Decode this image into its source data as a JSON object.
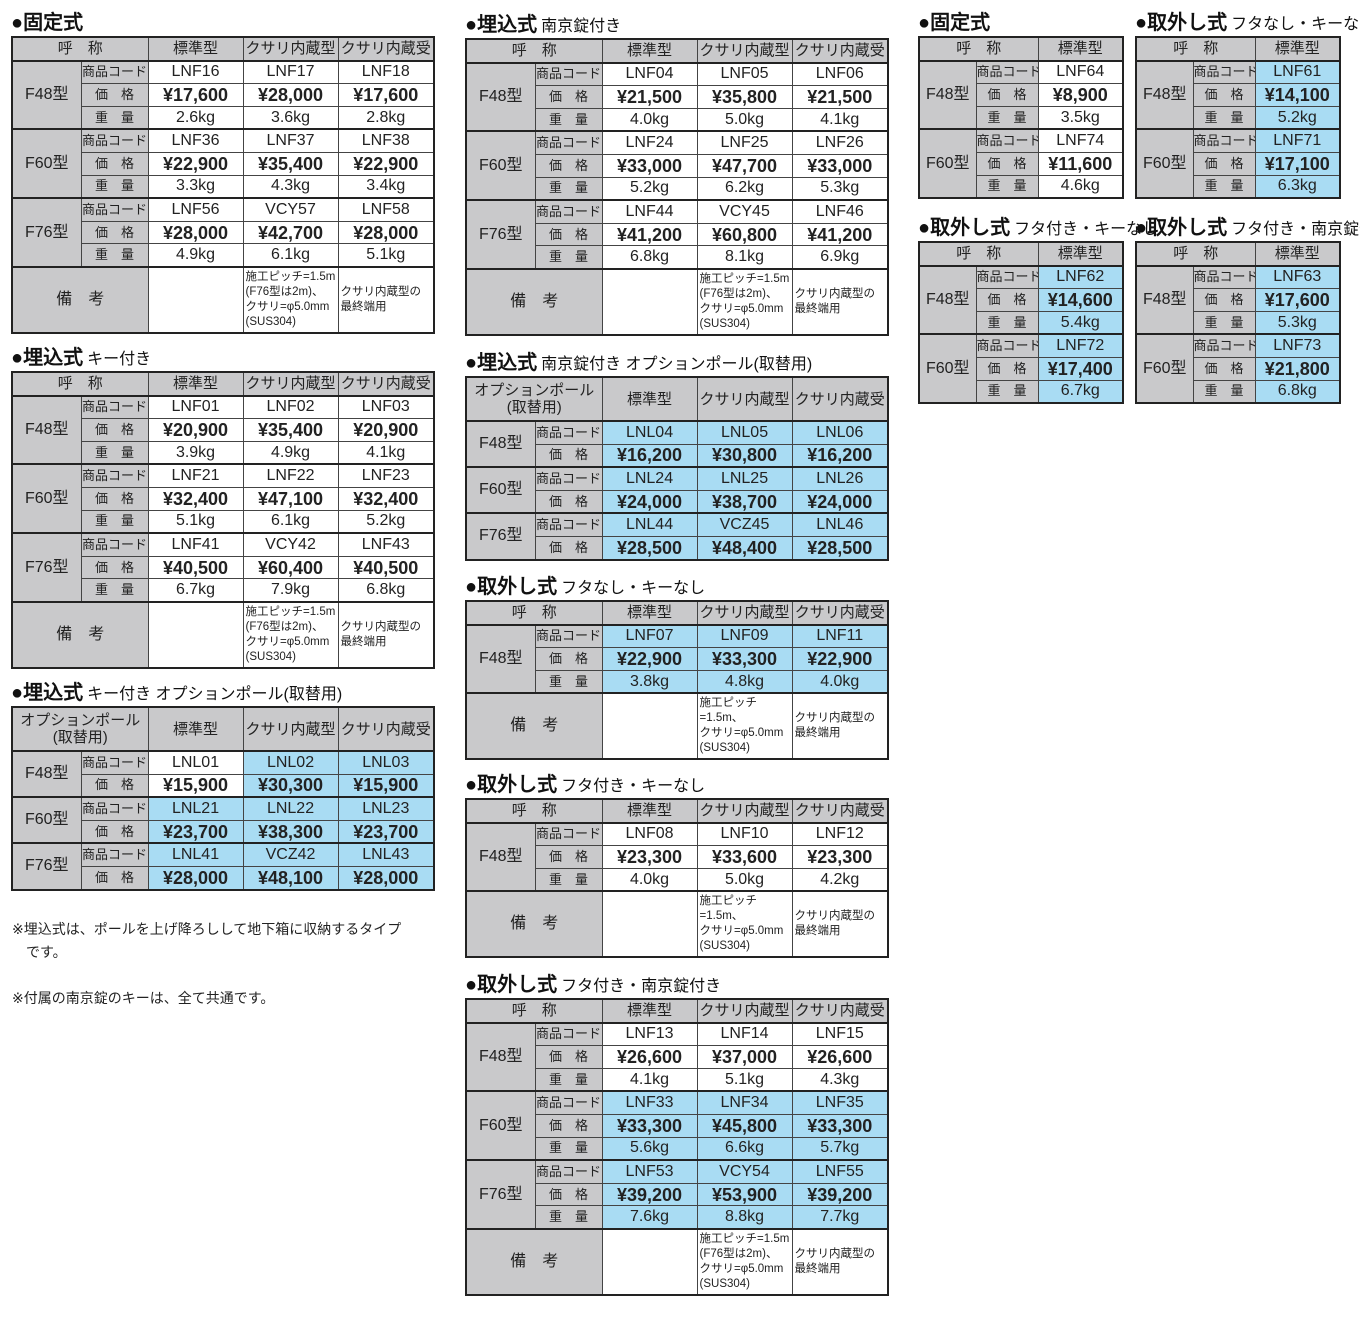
{
  "colors": {
    "header_gray": "#c9c9cb",
    "highlight_blue": "#a9dcf3",
    "border": "#222222"
  },
  "row_labels": [
    "商品コード",
    "価　格",
    "重　量"
  ],
  "remarks_label": "備　考",
  "tables": [
    {
      "title": "●固定式",
      "subtitle": "",
      "corner": "呼　称",
      "columns": [
        "標準型",
        "クサリ内蔵型",
        "クサリ内蔵受"
      ],
      "groups": [
        {
          "name": "F48型",
          "rows": [
            [
              "LNF16",
              "LNF17",
              "LNF18"
            ],
            [
              "¥17,600",
              "¥28,000",
              "¥17,600"
            ],
            [
              "2.6kg",
              "3.6kg",
              "2.8kg"
            ]
          ],
          "highlight": [
            false,
            false,
            false
          ]
        },
        {
          "name": "F60型",
          "rows": [
            [
              "LNF36",
              "LNF37",
              "LNF38"
            ],
            [
              "¥22,900",
              "¥35,400",
              "¥22,900"
            ],
            [
              "3.3kg",
              "4.3kg",
              "3.4kg"
            ]
          ],
          "highlight": [
            false,
            false,
            false
          ]
        },
        {
          "name": "F76型",
          "rows": [
            [
              "LNF56",
              "VCY57",
              "LNF58"
            ],
            [
              "¥28,000",
              "¥42,700",
              "¥28,000"
            ],
            [
              "4.9kg",
              "6.1kg",
              "5.1kg"
            ]
          ],
          "highlight": [
            false,
            false,
            false
          ]
        }
      ],
      "remarks": [
        "",
        "施工ピッチ=1.5m\n(F76型は2m)、\nクサリ=φ5.0mm\n(SUS304)",
        "クサリ内蔵型の\n最終端用"
      ]
    },
    {
      "title": "●埋込式",
      "subtitle": "キー付き",
      "corner": "呼　称",
      "columns": [
        "標準型",
        "クサリ内蔵型",
        "クサリ内蔵受"
      ],
      "groups": [
        {
          "name": "F48型",
          "rows": [
            [
              "LNF01",
              "LNF02",
              "LNF03"
            ],
            [
              "¥20,900",
              "¥35,400",
              "¥20,900"
            ],
            [
              "3.9kg",
              "4.9kg",
              "4.1kg"
            ]
          ],
          "highlight": [
            false,
            false,
            false
          ]
        },
        {
          "name": "F60型",
          "rows": [
            [
              "LNF21",
              "LNF22",
              "LNF23"
            ],
            [
              "¥32,400",
              "¥47,100",
              "¥32,400"
            ],
            [
              "5.1kg",
              "6.1kg",
              "5.2kg"
            ]
          ],
          "highlight": [
            false,
            false,
            false
          ]
        },
        {
          "name": "F76型",
          "rows": [
            [
              "LNF41",
              "VCY42",
              "LNF43"
            ],
            [
              "¥40,500",
              "¥60,400",
              "¥40,500"
            ],
            [
              "6.7kg",
              "7.9kg",
              "6.8kg"
            ]
          ],
          "highlight": [
            false,
            false,
            false
          ]
        }
      ],
      "remarks": [
        "",
        "施工ピッチ=1.5m\n(F76型は2m)、\nクサリ=φ5.0mm\n(SUS304)",
        "クサリ内蔵型の\n最終端用"
      ]
    },
    {
      "title": "●埋込式",
      "subtitle": "キー付き オプションポール(取替用)",
      "corner": "オプションポール\n(取替用)",
      "columns": [
        "標準型",
        "クサリ内蔵型",
        "クサリ内蔵受"
      ],
      "groups": [
        {
          "name": "F48型",
          "rows": [
            [
              "LNL01",
              "LNL02",
              "LNL03"
            ],
            [
              "¥15,900",
              "¥30,300",
              "¥15,900"
            ]
          ],
          "highlight": [
            false,
            true,
            true
          ]
        },
        {
          "name": "F60型",
          "rows": [
            [
              "LNL21",
              "LNL22",
              "LNL23"
            ],
            [
              "¥23,700",
              "¥38,300",
              "¥23,700"
            ]
          ],
          "highlight": [
            true,
            true,
            true
          ]
        },
        {
          "name": "F76型",
          "rows": [
            [
              "LNL41",
              "VCZ42",
              "LNL43"
            ],
            [
              "¥28,000",
              "¥48,100",
              "¥28,000"
            ]
          ],
          "highlight": [
            true,
            true,
            true
          ]
        }
      ],
      "remarks": null
    },
    {
      "title": "●埋込式",
      "subtitle": "南京錠付き",
      "corner": "呼　称",
      "columns": [
        "標準型",
        "クサリ内蔵型",
        "クサリ内蔵受"
      ],
      "groups": [
        {
          "name": "F48型",
          "rows": [
            [
              "LNF04",
              "LNF05",
              "LNF06"
            ],
            [
              "¥21,500",
              "¥35,800",
              "¥21,500"
            ],
            [
              "4.0kg",
              "5.0kg",
              "4.1kg"
            ]
          ],
          "highlight": [
            false,
            false,
            false
          ]
        },
        {
          "name": "F60型",
          "rows": [
            [
              "LNF24",
              "LNF25",
              "LNF26"
            ],
            [
              "¥33,000",
              "¥47,700",
              "¥33,000"
            ],
            [
              "5.2kg",
              "6.2kg",
              "5.3kg"
            ]
          ],
          "highlight": [
            false,
            false,
            false
          ]
        },
        {
          "name": "F76型",
          "rows": [
            [
              "LNF44",
              "VCY45",
              "LNF46"
            ],
            [
              "¥41,200",
              "¥60,800",
              "¥41,200"
            ],
            [
              "6.8kg",
              "8.1kg",
              "6.9kg"
            ]
          ],
          "highlight": [
            false,
            false,
            false
          ]
        }
      ],
      "remarks": [
        "",
        "施工ピッチ=1.5m\n(F76型は2m)、\nクサリ=φ5.0mm\n(SUS304)",
        "クサリ内蔵型の\n最終端用"
      ]
    },
    {
      "title": "●埋込式",
      "subtitle": "南京錠付き オプションポール(取替用)",
      "corner": "オプションポール\n(取替用)",
      "columns": [
        "標準型",
        "クサリ内蔵型",
        "クサリ内蔵受"
      ],
      "groups": [
        {
          "name": "F48型",
          "rows": [
            [
              "LNL04",
              "LNL05",
              "LNL06"
            ],
            [
              "¥16,200",
              "¥30,800",
              "¥16,200"
            ]
          ],
          "highlight": [
            true,
            true,
            true
          ]
        },
        {
          "name": "F60型",
          "rows": [
            [
              "LNL24",
              "LNL25",
              "LNL26"
            ],
            [
              "¥24,000",
              "¥38,700",
              "¥24,000"
            ]
          ],
          "highlight": [
            true,
            true,
            true
          ]
        },
        {
          "name": "F76型",
          "rows": [
            [
              "LNL44",
              "VCZ45",
              "LNL46"
            ],
            [
              "¥28,500",
              "¥48,400",
              "¥28,500"
            ]
          ],
          "highlight": [
            true,
            true,
            true
          ]
        }
      ],
      "remarks": null
    },
    {
      "title": "●取外し式",
      "subtitle": "フタなし・キーなし",
      "corner": "呼　称",
      "columns": [
        "標準型",
        "クサリ内蔵型",
        "クサリ内蔵受"
      ],
      "groups": [
        {
          "name": "F48型",
          "rows": [
            [
              "LNF07",
              "LNF09",
              "LNF11"
            ],
            [
              "¥22,900",
              "¥33,300",
              "¥22,900"
            ],
            [
              "3.8kg",
              "4.8kg",
              "4.0kg"
            ]
          ],
          "highlight": [
            true,
            true,
            true
          ]
        }
      ],
      "remarks": [
        "",
        "施工ピッチ\n=1.5m、\nクサリ=φ5.0mm\n(SUS304)",
        "クサリ内蔵型の\n最終端用"
      ]
    },
    {
      "title": "●取外し式",
      "subtitle": "フタ付き・キーなし",
      "corner": "呼　称",
      "columns": [
        "標準型",
        "クサリ内蔵型",
        "クサリ内蔵受"
      ],
      "groups": [
        {
          "name": "F48型",
          "rows": [
            [
              "LNF08",
              "LNF10",
              "LNF12"
            ],
            [
              "¥23,300",
              "¥33,600",
              "¥23,300"
            ],
            [
              "4.0kg",
              "5.0kg",
              "4.2kg"
            ]
          ],
          "highlight": [
            false,
            false,
            false
          ]
        }
      ],
      "remarks": [
        "",
        "施工ピッチ\n=1.5m、\nクサリ=φ5.0mm\n(SUS304)",
        "クサリ内蔵型の\n最終端用"
      ]
    },
    {
      "title": "●取外し式",
      "subtitle": "フタ付き・南京錠付き",
      "corner": "呼　称",
      "columns": [
        "標準型",
        "クサリ内蔵型",
        "クサリ内蔵受"
      ],
      "groups": [
        {
          "name": "F48型",
          "rows": [
            [
              "LNF13",
              "LNF14",
              "LNF15"
            ],
            [
              "¥26,600",
              "¥37,000",
              "¥26,600"
            ],
            [
              "4.1kg",
              "5.1kg",
              "4.3kg"
            ]
          ],
          "highlight": [
            false,
            false,
            false
          ]
        },
        {
          "name": "F60型",
          "rows": [
            [
              "LNF33",
              "LNF34",
              "LNF35"
            ],
            [
              "¥33,300",
              "¥45,800",
              "¥33,300"
            ],
            [
              "5.6kg",
              "6.6kg",
              "5.7kg"
            ]
          ],
          "highlight": [
            true,
            true,
            true
          ]
        },
        {
          "name": "F76型",
          "rows": [
            [
              "LNF53",
              "VCY54",
              "LNF55"
            ],
            [
              "¥39,200",
              "¥53,900",
              "¥39,200"
            ],
            [
              "7.6kg",
              "8.8kg",
              "7.7kg"
            ]
          ],
          "highlight": [
            true,
            true,
            true
          ]
        }
      ],
      "remarks": [
        "",
        "施工ピッチ=1.5m\n(F76型は2m)、\nクサリ=φ5.0mm\n(SUS304)",
        "クサリ内蔵型の\n最終端用"
      ]
    },
    {
      "title": "●固定式",
      "subtitle": "",
      "corner": "呼　称",
      "columns": [
        "標準型"
      ],
      "groups": [
        {
          "name": "F48型",
          "rows": [
            [
              "LNF64"
            ],
            [
              "¥8,900"
            ],
            [
              "3.5kg"
            ]
          ],
          "highlight": [
            false
          ]
        },
        {
          "name": "F60型",
          "rows": [
            [
              "LNF74"
            ],
            [
              "¥11,600"
            ],
            [
              "4.6kg"
            ]
          ],
          "highlight": [
            false
          ]
        }
      ],
      "remarks": null
    },
    {
      "title": "●取外し式",
      "subtitle": "フタなし・キーなし",
      "corner": "呼　称",
      "columns": [
        "標準型"
      ],
      "groups": [
        {
          "name": "F48型",
          "rows": [
            [
              "LNF61"
            ],
            [
              "¥14,100"
            ],
            [
              "5.2kg"
            ]
          ],
          "highlight": [
            true
          ]
        },
        {
          "name": "F60型",
          "rows": [
            [
              "LNF71"
            ],
            [
              "¥17,100"
            ],
            [
              "6.3kg"
            ]
          ],
          "highlight": [
            true
          ]
        }
      ],
      "remarks": null
    },
    {
      "title": "●取外し式",
      "subtitle": "フタ付き・キーなし",
      "corner": "呼　称",
      "columns": [
        "標準型"
      ],
      "groups": [
        {
          "name": "F48型",
          "rows": [
            [
              "LNF62"
            ],
            [
              "¥14,600"
            ],
            [
              "5.4kg"
            ]
          ],
          "highlight": [
            true
          ]
        },
        {
          "name": "F60型",
          "rows": [
            [
              "LNF72"
            ],
            [
              "¥17,400"
            ],
            [
              "6.7kg"
            ]
          ],
          "highlight": [
            true
          ]
        }
      ],
      "remarks": null
    },
    {
      "title": "●取外し式",
      "subtitle": "フタ付き・南京錠付き",
      "corner": "呼　称",
      "columns": [
        "標準型"
      ],
      "groups": [
        {
          "name": "F48型",
          "rows": [
            [
              "LNF63"
            ],
            [
              "¥17,600"
            ],
            [
              "5.3kg"
            ]
          ],
          "highlight": [
            true
          ]
        },
        {
          "name": "F60型",
          "rows": [
            [
              "LNF73"
            ],
            [
              "¥21,800"
            ],
            [
              "6.8kg"
            ]
          ],
          "highlight": [
            true
          ]
        }
      ],
      "remarks": null
    }
  ],
  "notes": [
    "※埋込式は、ポールを上げ降ろしして地下箱に収納するタイプ\n　です。",
    "※付属の南京錠のキーは、全て共通です。"
  ]
}
